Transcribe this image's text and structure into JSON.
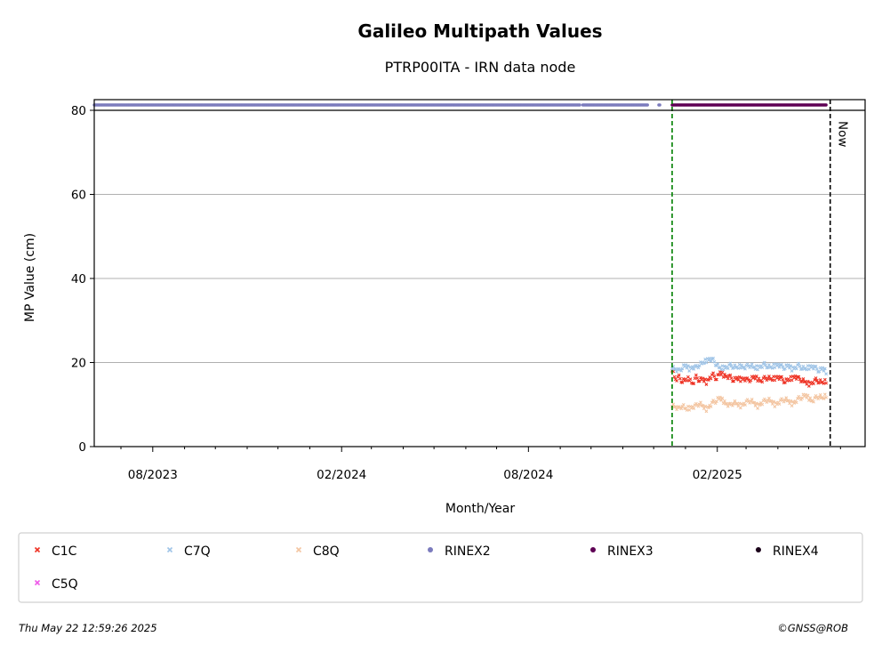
{
  "chart_data": {
    "type": "scatter",
    "title": "Galileo Multipath Values",
    "subtitle": "PTRP00ITA - IRN data node",
    "xlabel": "Month/Year",
    "ylabel": "MP Value (cm)",
    "ylim": [
      0,
      80
    ],
    "yticks": [
      0,
      20,
      40,
      60,
      80
    ],
    "xlim": [
      "2023-06-05",
      "2025-06-25"
    ],
    "xticks": [
      {
        "date": "2023-08-01",
        "label": "08/2023"
      },
      {
        "date": "2024-02-01",
        "label": "02/2024"
      },
      {
        "date": "2024-08-01",
        "label": "08/2024"
      },
      {
        "date": "2025-02-01",
        "label": "02/2025"
      }
    ],
    "minor_ticks": [
      "2023-07-01",
      "2023-09-01",
      "2023-10-01",
      "2023-11-01",
      "2023-12-01",
      "2024-01-01",
      "2024-03-01",
      "2024-04-01",
      "2024-05-01",
      "2024-06-01",
      "2024-07-01",
      "2024-09-01",
      "2024-10-01",
      "2024-11-01",
      "2024-12-01",
      "2025-01-01",
      "2025-03-01",
      "2025-04-01",
      "2025-05-01",
      "2025-06-01"
    ],
    "grid": "y",
    "vlines": [
      {
        "date": "2024-12-19",
        "color": "#008000",
        "label": ""
      },
      {
        "date": "2025-05-22",
        "color": "#000000",
        "label": "Now"
      }
    ],
    "rinex_band": {
      "segments": [
        {
          "name": "RINEX2",
          "start": "2023-06-05",
          "end": "2024-09-20",
          "color": "#7b7bbd"
        },
        {
          "name": "RINEX2",
          "start": "2024-09-23",
          "end": "2024-11-25",
          "color": "#7b7bbd"
        },
        {
          "name": "RINEX2",
          "start": "2024-12-06",
          "end": "2024-12-07",
          "color": "#7b7bbd"
        },
        {
          "name": "RINEX3",
          "start": "2024-12-19",
          "end": "2025-05-18",
          "color": "#5e0054"
        }
      ]
    },
    "series": [
      {
        "name": "C1C",
        "marker": "x",
        "color": "#ee3224",
        "start": "2024-12-19",
        "end": "2025-05-18",
        "values": [
          18.5,
          16,
          16.5,
          15.5,
          15.8,
          16.2,
          15,
          16.5,
          15.8,
          16,
          15.3,
          16.5,
          17,
          16.2,
          17.5,
          17,
          16.8,
          16.5,
          15.8,
          16.2,
          16,
          16.3,
          15.8,
          16,
          16.5,
          16.1,
          15.7,
          16.2,
          16.4,
          15.9,
          16.3,
          16.7,
          16.1,
          15.5,
          15.8,
          16.3,
          16.8,
          16.1,
          15.8,
          15.2,
          14.9,
          15.3,
          15.8,
          15.5,
          15.1,
          15.6
        ]
      },
      {
        "name": "C7Q",
        "marker": "x",
        "color": "#9fc4e7",
        "start": "2024-12-19",
        "end": "2025-05-18",
        "values": [
          19,
          18.5,
          18,
          18.8,
          19.2,
          18.5,
          19,
          18.8,
          19.5,
          19.8,
          20.5,
          21,
          20.5,
          19.5,
          18.5,
          18.8,
          19,
          19.3,
          19,
          18.7,
          19.2,
          18.9,
          19.1,
          19.4,
          18.6,
          18.8,
          19.2,
          19.5,
          19.1,
          18.7,
          19.3,
          19.6,
          19,
          18.8,
          19.2,
          18.5,
          18.9,
          19.3,
          18.7,
          18.4,
          18.9,
          19.2,
          18.6,
          18.1,
          18.5,
          17.8
        ]
      },
      {
        "name": "C8Q",
        "marker": "x",
        "color": "#f3c5a1",
        "start": "2024-12-19",
        "end": "2025-05-18",
        "values": [
          10,
          9.5,
          9,
          9.8,
          8.8,
          9.2,
          9.5,
          9.7,
          10.3,
          9.5,
          8.9,
          9.8,
          10.5,
          11,
          11.5,
          10.8,
          10.2,
          9.8,
          10.5,
          10,
          9.7,
          10.3,
          10.7,
          11,
          10.2,
          9.6,
          10.4,
          10.8,
          11.2,
          10.6,
          10,
          10.5,
          10.9,
          11.3,
          10.7,
          10.2,
          10.8,
          11.4,
          11.8,
          12.1,
          11.5,
          10.9,
          11.6,
          12,
          11.4,
          12.2
        ]
      }
    ],
    "legend": {
      "placement": "bottom",
      "entries": [
        {
          "label": "C1C",
          "marker": "x",
          "color": "#ee3224"
        },
        {
          "label": "C7Q",
          "marker": "x",
          "color": "#9fc4e7"
        },
        {
          "label": "C8Q",
          "marker": "x",
          "color": "#f3c5a1"
        },
        {
          "label": "RINEX2",
          "marker": "dot",
          "color": "#7b7bbd"
        },
        {
          "label": "RINEX3",
          "marker": "dot",
          "color": "#5e0054"
        },
        {
          "label": "RINEX4",
          "marker": "dot",
          "color": "#1a0019"
        },
        {
          "label": "C5Q",
          "marker": "x",
          "color": "#ee5ae8"
        }
      ]
    }
  },
  "footer": {
    "timestamp": "Thu May 22 12:59:26 2025",
    "credit": "©GNSS@ROB"
  }
}
